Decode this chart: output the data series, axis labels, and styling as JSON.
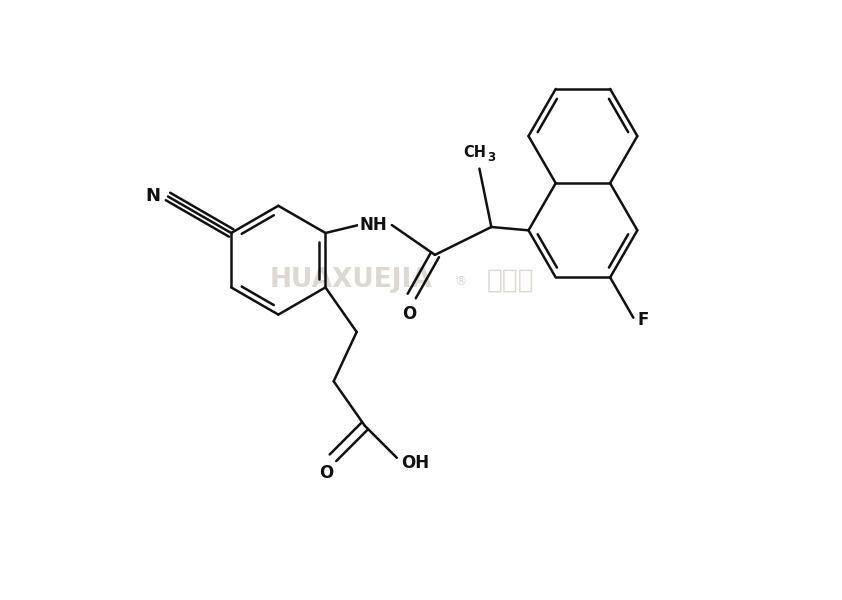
{
  "bg_color": "#ffffff",
  "line_color": "#111111",
  "line_width": 1.8,
  "watermark_color": "#c8beb4",
  "font_size": 12,
  "figsize": [
    8.42,
    6.0
  ],
  "dpi": 100,
  "xlim": [
    0.0,
    10.5
  ],
  "ylim": [
    -0.5,
    8.5
  ]
}
